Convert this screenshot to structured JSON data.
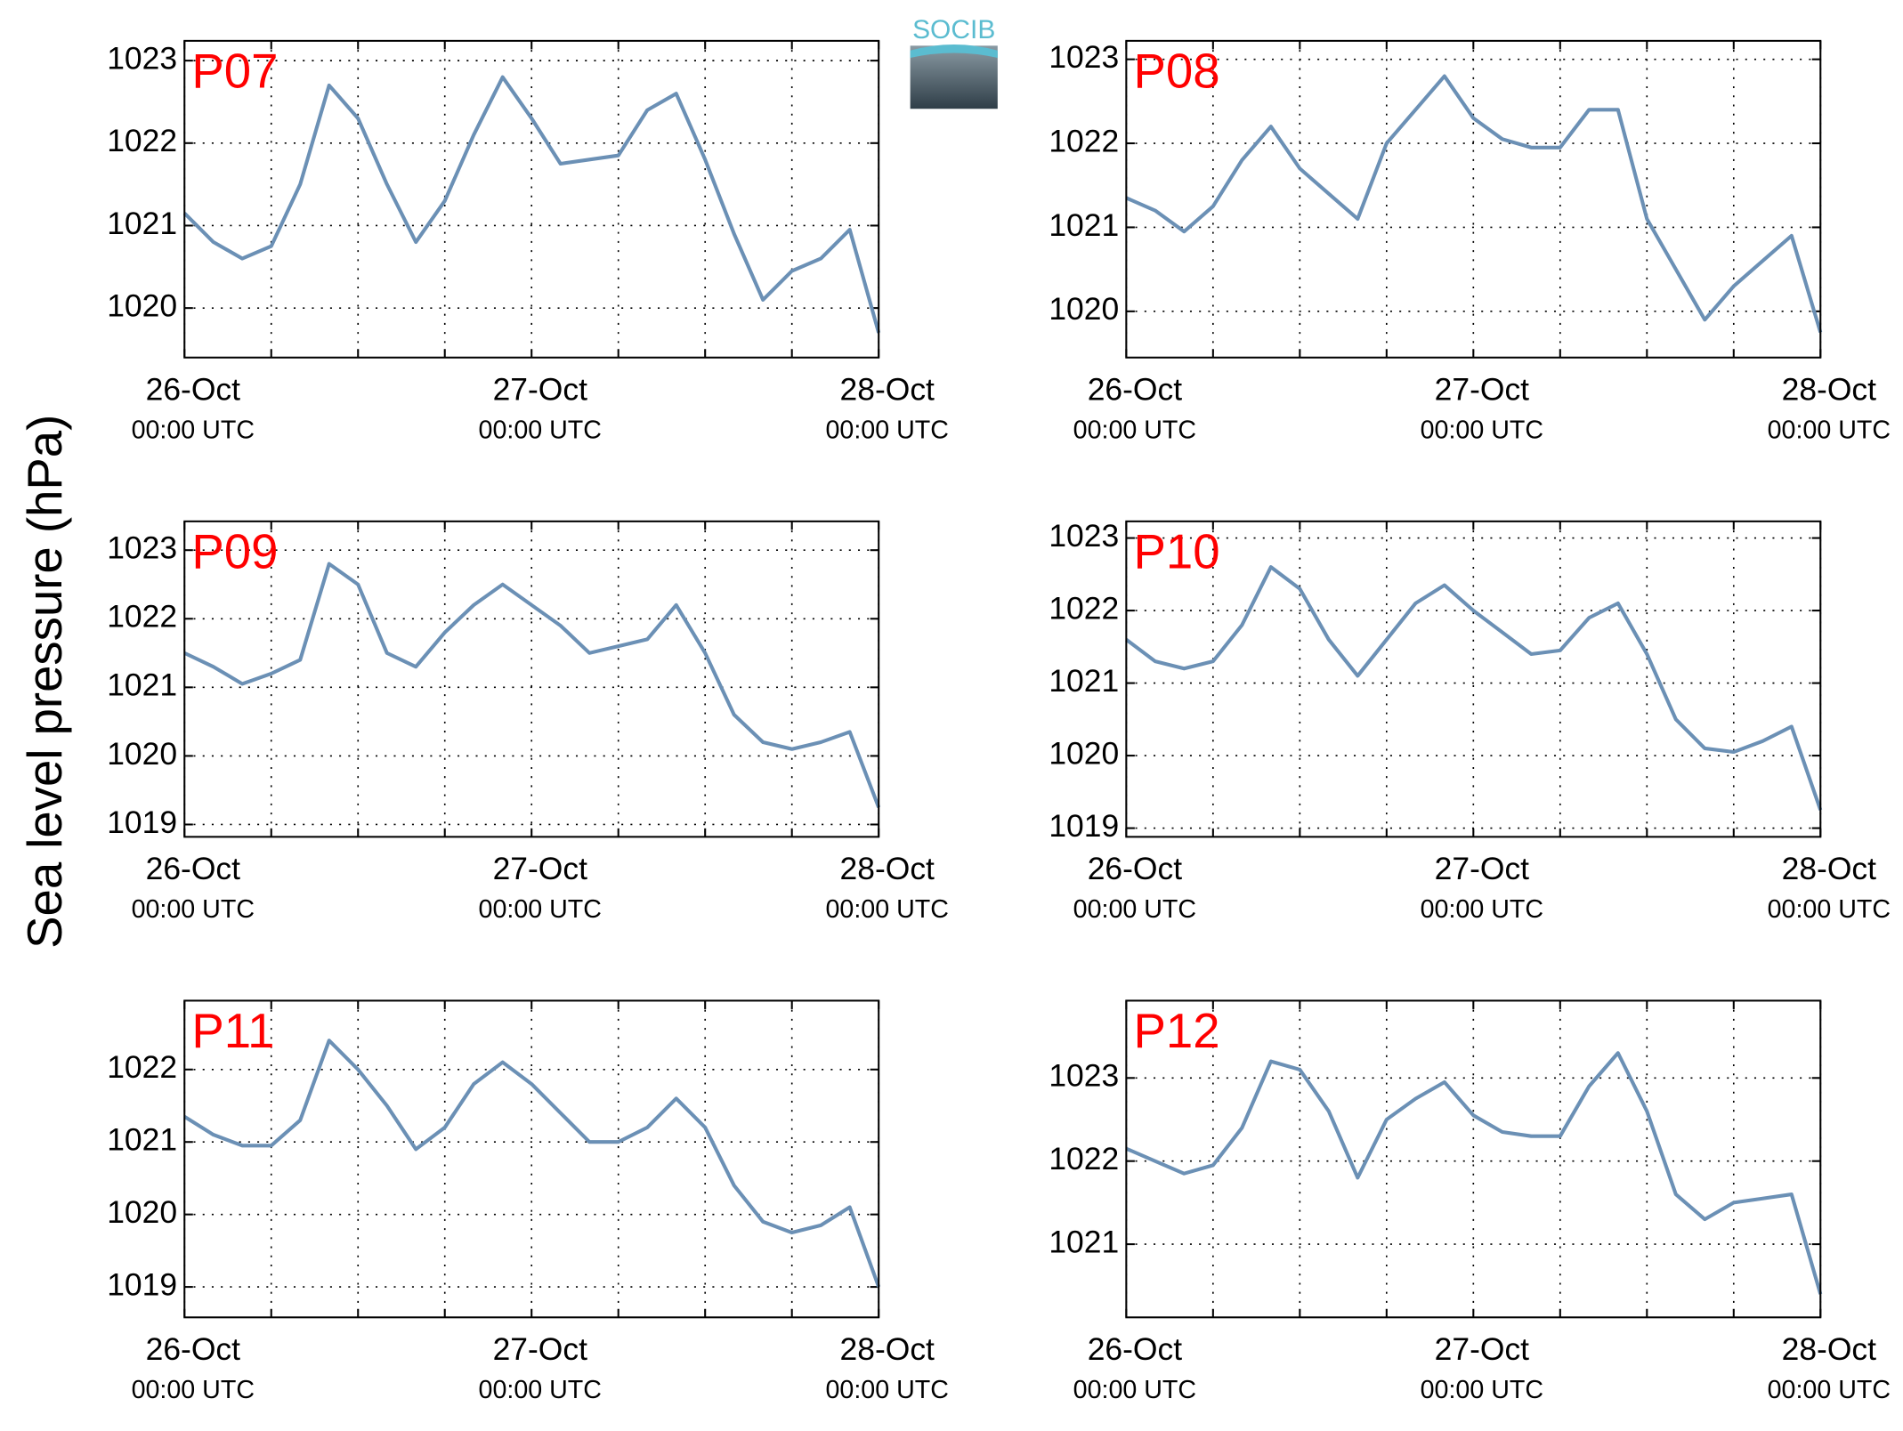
{
  "ylabel": "Sea level pressure (hPa)",
  "logo": "SOCIB",
  "chart_data": [
    {
      "type": "line",
      "title": "P07",
      "color": "#6b90b5",
      "grid": true,
      "x": [
        0,
        2,
        4,
        6,
        8,
        10,
        12,
        14,
        16,
        18,
        20,
        22,
        24,
        26,
        28,
        30,
        32,
        34,
        36,
        38,
        40,
        42,
        44,
        46,
        48
      ],
      "values": [
        1021.15,
        1020.8,
        1020.6,
        1020.75,
        1021.5,
        1022.7,
        1022.3,
        1021.5,
        1020.8,
        1021.3,
        1022.1,
        1022.8,
        1022.3,
        1021.75,
        1021.8,
        1021.85,
        1022.4,
        1022.6,
        1021.8,
        1020.9,
        1020.1,
        1020.45,
        1020.6,
        1020.95,
        1019.7
      ],
      "xlim": [
        0,
        48
      ],
      "ylim": [
        1019.4,
        1023.24
      ],
      "yticks": [
        1020,
        1021,
        1022,
        1023
      ],
      "xticks": [
        {
          "value": 0,
          "label": [
            "26-Oct",
            "00:00 UTC"
          ]
        },
        {
          "value": 6,
          "label": null
        },
        {
          "value": 12,
          "label": null
        },
        {
          "value": 18,
          "label": null
        },
        {
          "value": 24,
          "label": [
            "27-Oct",
            "00:00 UTC"
          ]
        },
        {
          "value": 30,
          "label": null
        },
        {
          "value": 36,
          "label": null
        },
        {
          "value": 42,
          "label": null
        },
        {
          "value": 48,
          "label": [
            "28-Oct",
            "00:00 UTC"
          ]
        }
      ]
    },
    {
      "type": "line",
      "title": "P08",
      "color": "#6b90b5",
      "grid": true,
      "x": [
        0,
        2,
        4,
        6,
        8,
        10,
        12,
        14,
        16,
        18,
        20,
        22,
        24,
        26,
        28,
        30,
        32,
        34,
        36,
        38,
        40,
        42,
        44,
        46,
        48
      ],
      "values": [
        1021.35,
        1021.2,
        1020.95,
        1021.25,
        1021.8,
        1022.2,
        1021.7,
        1021.4,
        1021.1,
        1022.0,
        1022.4,
        1022.8,
        1022.3,
        1022.05,
        1021.95,
        1021.95,
        1022.4,
        1022.4,
        1021.1,
        1020.5,
        1019.9,
        1020.3,
        1020.6,
        1020.9,
        1019.75
      ],
      "xlim": [
        0,
        48
      ],
      "ylim": [
        1019.45,
        1023.22
      ],
      "yticks": [
        1020,
        1021,
        1022,
        1023
      ],
      "xticks": [
        {
          "value": 0,
          "label": [
            "26-Oct",
            "00:00 UTC"
          ]
        },
        {
          "value": 6,
          "label": null
        },
        {
          "value": 12,
          "label": null
        },
        {
          "value": 18,
          "label": null
        },
        {
          "value": 24,
          "label": [
            "27-Oct",
            "00:00 UTC"
          ]
        },
        {
          "value": 30,
          "label": null
        },
        {
          "value": 36,
          "label": null
        },
        {
          "value": 42,
          "label": null
        },
        {
          "value": 48,
          "label": [
            "28-Oct",
            "00:00 UTC"
          ]
        }
      ]
    },
    {
      "type": "line",
      "title": "P09",
      "color": "#6b90b5",
      "grid": true,
      "x": [
        0,
        2,
        4,
        6,
        8,
        10,
        12,
        14,
        16,
        18,
        20,
        22,
        24,
        26,
        28,
        30,
        32,
        34,
        36,
        38,
        40,
        42,
        44,
        46,
        48
      ],
      "values": [
        1021.5,
        1021.3,
        1021.05,
        1021.2,
        1021.4,
        1022.8,
        1022.5,
        1021.5,
        1021.3,
        1021.8,
        1022.2,
        1022.5,
        1022.2,
        1021.9,
        1021.5,
        1021.6,
        1021.7,
        1022.2,
        1021.5,
        1020.6,
        1020.2,
        1020.1,
        1020.2,
        1020.35,
        1019.25
      ],
      "xlim": [
        0,
        48
      ],
      "ylim": [
        1018.82,
        1023.42
      ],
      "yticks": [
        1019,
        1020,
        1021,
        1022,
        1023
      ],
      "xticks": [
        {
          "value": 0,
          "label": [
            "26-Oct",
            "00:00 UTC"
          ]
        },
        {
          "value": 6,
          "label": null
        },
        {
          "value": 12,
          "label": null
        },
        {
          "value": 18,
          "label": null
        },
        {
          "value": 24,
          "label": [
            "27-Oct",
            "00:00 UTC"
          ]
        },
        {
          "value": 30,
          "label": null
        },
        {
          "value": 36,
          "label": null
        },
        {
          "value": 42,
          "label": null
        },
        {
          "value": 48,
          "label": [
            "28-Oct",
            "00:00 UTC"
          ]
        }
      ]
    },
    {
      "type": "line",
      "title": "P10",
      "color": "#6b90b5",
      "grid": true,
      "x": [
        0,
        2,
        4,
        6,
        8,
        10,
        12,
        14,
        16,
        18,
        20,
        22,
        24,
        26,
        28,
        30,
        32,
        34,
        36,
        38,
        40,
        42,
        44,
        46,
        48
      ],
      "values": [
        1021.6,
        1021.3,
        1021.2,
        1021.3,
        1021.8,
        1022.6,
        1022.3,
        1021.6,
        1021.1,
        1021.6,
        1022.1,
        1022.35,
        1022.0,
        1021.7,
        1021.4,
        1021.45,
        1021.9,
        1022.1,
        1021.4,
        1020.5,
        1020.1,
        1020.05,
        1020.2,
        1020.4,
        1019.25
      ],
      "xlim": [
        0,
        48
      ],
      "ylim": [
        1018.88,
        1023.23
      ],
      "yticks": [
        1019,
        1020,
        1021,
        1022,
        1023
      ],
      "xticks": [
        {
          "value": 0,
          "label": [
            "26-Oct",
            "00:00 UTC"
          ]
        },
        {
          "value": 6,
          "label": null
        },
        {
          "value": 12,
          "label": null
        },
        {
          "value": 18,
          "label": null
        },
        {
          "value": 24,
          "label": [
            "27-Oct",
            "00:00 UTC"
          ]
        },
        {
          "value": 30,
          "label": null
        },
        {
          "value": 36,
          "label": null
        },
        {
          "value": 42,
          "label": null
        },
        {
          "value": 48,
          "label": [
            "28-Oct",
            "00:00 UTC"
          ]
        }
      ]
    },
    {
      "type": "line",
      "title": "P11",
      "color": "#6b90b5",
      "grid": true,
      "x": [
        0,
        2,
        4,
        6,
        8,
        10,
        12,
        14,
        16,
        18,
        20,
        22,
        24,
        26,
        28,
        30,
        32,
        34,
        36,
        38,
        40,
        42,
        44,
        46,
        48
      ],
      "values": [
        1021.35,
        1021.1,
        1020.95,
        1020.95,
        1021.3,
        1022.4,
        1022.0,
        1021.5,
        1020.9,
        1021.2,
        1021.8,
        1022.1,
        1021.8,
        1021.4,
        1021.0,
        1021.0,
        1021.2,
        1021.6,
        1021.2,
        1020.4,
        1019.9,
        1019.75,
        1019.85,
        1020.1,
        1019.0
      ],
      "xlim": [
        0,
        48
      ],
      "ylim": [
        1018.58,
        1022.95
      ],
      "yticks": [
        1019,
        1020,
        1021,
        1022
      ],
      "xticks": [
        {
          "value": 0,
          "label": [
            "26-Oct",
            "00:00 UTC"
          ]
        },
        {
          "value": 6,
          "label": null
        },
        {
          "value": 12,
          "label": null
        },
        {
          "value": 18,
          "label": null
        },
        {
          "value": 24,
          "label": [
            "27-Oct",
            "00:00 UTC"
          ]
        },
        {
          "value": 30,
          "label": null
        },
        {
          "value": 36,
          "label": null
        },
        {
          "value": 42,
          "label": null
        },
        {
          "value": 48,
          "label": [
            "28-Oct",
            "00:00 UTC"
          ]
        }
      ]
    },
    {
      "type": "line",
      "title": "P12",
      "color": "#6b90b5",
      "grid": true,
      "x": [
        0,
        2,
        4,
        6,
        8,
        10,
        12,
        14,
        16,
        18,
        20,
        22,
        24,
        26,
        28,
        30,
        32,
        34,
        36,
        38,
        40,
        42,
        44,
        46,
        48
      ],
      "values": [
        1022.15,
        1022.0,
        1021.85,
        1021.95,
        1022.4,
        1023.2,
        1023.1,
        1022.6,
        1021.8,
        1022.5,
        1022.75,
        1022.95,
        1022.55,
        1022.35,
        1022.3,
        1022.3,
        1022.9,
        1023.3,
        1022.6,
        1021.6,
        1021.3,
        1021.5,
        1021.55,
        1021.6,
        1020.4
      ],
      "xlim": [
        0,
        48
      ],
      "ylim": [
        1020.12,
        1023.93
      ],
      "yticks": [
        1021,
        1022,
        1023
      ],
      "xticks": [
        {
          "value": 0,
          "label": [
            "26-Oct",
            "00:00 UTC"
          ]
        },
        {
          "value": 6,
          "label": null
        },
        {
          "value": 12,
          "label": null
        },
        {
          "value": 18,
          "label": null
        },
        {
          "value": 24,
          "label": [
            "27-Oct",
            "00:00 UTC"
          ]
        },
        {
          "value": 30,
          "label": null
        },
        {
          "value": 36,
          "label": null
        },
        {
          "value": 42,
          "label": null
        },
        {
          "value": 48,
          "label": [
            "28-Oct",
            "00:00 UTC"
          ]
        }
      ]
    }
  ]
}
